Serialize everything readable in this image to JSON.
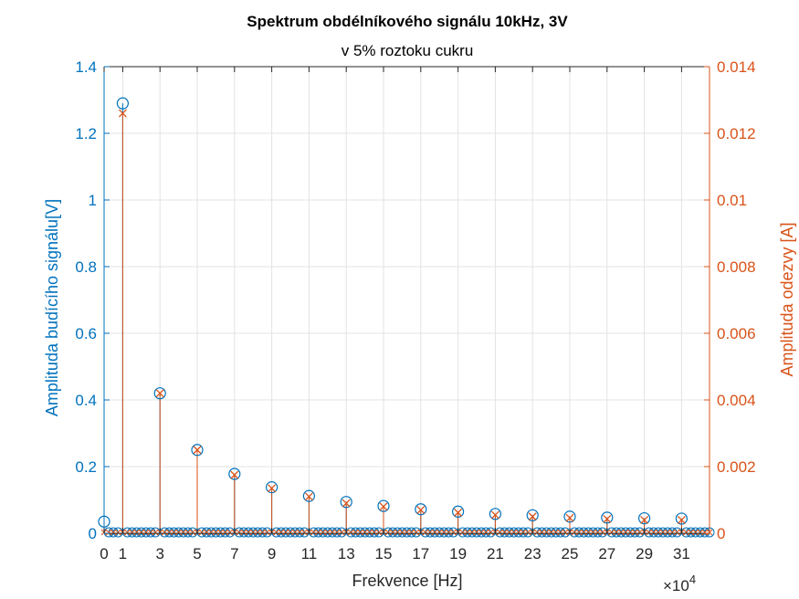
{
  "chart_data": {
    "type": "stem",
    "title": "Spektrum obdélníkového signálu 10kHz, 3V",
    "subtitle": "v 5% roztoku cukru",
    "xlabel": "Frekvence [Hz]",
    "x_multiplier_base": "×10",
    "x_multiplier_exp": "4",
    "ylabel_left": "Amplituda budícího signálu[V]",
    "ylabel_right": "Amplituda odezvy [A]",
    "xlim": [
      0,
      32.5
    ],
    "ylim_left": [
      0,
      1.4
    ],
    "ylim_right": [
      0,
      0.014
    ],
    "xticks": [
      "0",
      "1",
      "3",
      "5",
      "7",
      "9",
      "11",
      "13",
      "15",
      "17",
      "19",
      "21",
      "23",
      "25",
      "27",
      "29",
      "31"
    ],
    "yticks_left": [
      "0",
      "0.2",
      "0.4",
      "0.6",
      "0.8",
      "1",
      "1.2",
      "1.4"
    ],
    "yticks_right": [
      "0",
      "0.002",
      "0.004",
      "0.006",
      "0.008",
      "0.01",
      "0.012",
      "0.014"
    ],
    "grid": true,
    "colors": {
      "left": "#0072BD",
      "right": "#D95319"
    },
    "series": [
      {
        "axis": "left",
        "marker": "circle",
        "x": [
          0,
          1,
          3,
          5,
          7,
          9,
          11,
          13,
          15,
          17,
          19,
          21,
          23,
          25,
          27,
          29,
          31
        ],
        "values": [
          0.035,
          1.29,
          0.42,
          0.25,
          0.178,
          0.138,
          0.112,
          0.094,
          0.082,
          0.072,
          0.065,
          0.058,
          0.054,
          0.05,
          0.047,
          0.045,
          0.044
        ]
      },
      {
        "axis": "right",
        "marker": "x",
        "x": [
          1,
          3,
          5,
          7,
          9,
          11,
          13,
          15,
          17,
          19,
          21,
          23,
          25,
          27,
          29,
          31
        ],
        "values": [
          0.0126,
          0.0042,
          0.0025,
          0.00175,
          0.00135,
          0.0011,
          0.0009,
          0.0008,
          0.0007,
          0.00062,
          0.00055,
          0.0005,
          0.00046,
          0.00043,
          0.0004,
          0.0004
        ]
      }
    ],
    "noise_floor_step": 0.25
  }
}
